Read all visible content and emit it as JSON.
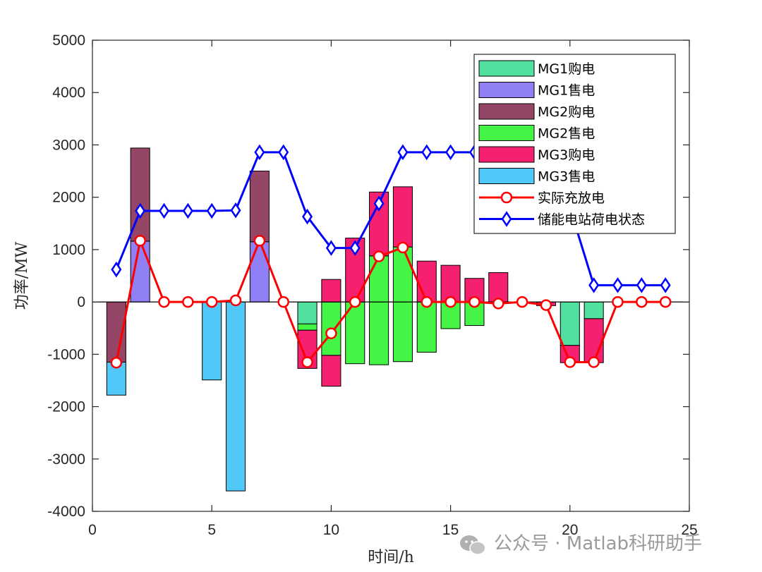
{
  "chart_data": {
    "type": "bar",
    "xlabel": "时间/h",
    "ylabel": "功率/MW",
    "xlim": [
      0,
      25
    ],
    "ylim": [
      -4000,
      5000
    ],
    "x_ticks": [
      0,
      5,
      10,
      15,
      20,
      25
    ],
    "y_ticks": [
      -4000,
      -3000,
      -2000,
      -1000,
      0,
      1000,
      2000,
      3000,
      4000,
      5000
    ],
    "grid": false,
    "legend_position": "top-right",
    "x": [
      1,
      2,
      3,
      4,
      5,
      6,
      7,
      8,
      9,
      10,
      11,
      12,
      13,
      14,
      15,
      16,
      17,
      18,
      19,
      20,
      21,
      22,
      23,
      24
    ],
    "bar_series": [
      {
        "name": "MG1购电",
        "color": "#52e0a0",
        "values": [
          0,
          0,
          0,
          0,
          0,
          0,
          0,
          0,
          0,
          0,
          0,
          0,
          0,
          0,
          0,
          0,
          0,
          0,
          0,
          0,
          0,
          0,
          0,
          0
        ],
        "neg_values": [
          0,
          0,
          0,
          0,
          0,
          0,
          0,
          0,
          -420,
          0,
          0,
          0,
          0,
          0,
          0,
          0,
          0,
          0,
          0,
          -830,
          -320,
          0,
          0,
          0
        ]
      },
      {
        "name": "MG1售电",
        "color": "#9080f5",
        "values": [
          0,
          1160,
          0,
          0,
          0,
          0,
          1150,
          0,
          0,
          0,
          0,
          0,
          0,
          0,
          0,
          0,
          0,
          0,
          0,
          0,
          0,
          0,
          0,
          0
        ],
        "neg_values": [
          0,
          0,
          0,
          0,
          0,
          0,
          0,
          0,
          0,
          0,
          0,
          0,
          0,
          0,
          0,
          0,
          0,
          0,
          0,
          0,
          0,
          0,
          0,
          0
        ]
      },
      {
        "name": "MG2购电",
        "color": "#954565",
        "values": [
          0,
          1780,
          0,
          0,
          0,
          0,
          1350,
          0,
          0,
          0,
          0,
          0,
          0,
          0,
          0,
          0,
          0,
          0,
          0,
          0,
          0,
          0,
          0,
          0
        ],
        "neg_values": [
          -1150,
          0,
          0,
          0,
          0,
          0,
          0,
          0,
          0,
          0,
          0,
          0,
          0,
          0,
          0,
          0,
          0,
          0,
          0,
          0,
          0,
          0,
          0,
          0
        ]
      },
      {
        "name": "MG2售电",
        "color": "#45f545",
        "values": [
          0,
          0,
          0,
          0,
          0,
          0,
          0,
          0,
          0,
          0,
          0,
          880,
          1050,
          0,
          0,
          0,
          0,
          0,
          0,
          0,
          0,
          0,
          0,
          0
        ],
        "neg_values": [
          0,
          0,
          0,
          0,
          0,
          0,
          0,
          0,
          -120,
          -1020,
          -1180,
          -1200,
          -1140,
          -960,
          -510,
          -450,
          0,
          0,
          0,
          0,
          0,
          0,
          0,
          0
        ]
      },
      {
        "name": "MG3购电",
        "color": "#f52070",
        "values": [
          0,
          0,
          0,
          0,
          0,
          0,
          0,
          0,
          0,
          430,
          1220,
          1220,
          1150,
          780,
          700,
          450,
          560,
          0,
          0,
          0,
          0,
          0,
          0,
          0
        ],
        "neg_values": [
          0,
          0,
          0,
          0,
          0,
          0,
          0,
          0,
          -730,
          -590,
          0,
          0,
          0,
          0,
          0,
          0,
          0,
          0,
          -70,
          -330,
          -840,
          0,
          0,
          0
        ]
      },
      {
        "name": "MG3售电",
        "color": "#50c8f8",
        "values": [
          0,
          0,
          0,
          0,
          0,
          0,
          0,
          0,
          0,
          0,
          0,
          0,
          0,
          0,
          0,
          0,
          0,
          0,
          0,
          0,
          0,
          0,
          0,
          0
        ],
        "neg_values": [
          -630,
          0,
          0,
          0,
          -1490,
          -3610,
          0,
          0,
          0,
          0,
          0,
          0,
          0,
          0,
          0,
          0,
          0,
          0,
          0,
          0,
          0,
          0,
          0,
          0
        ]
      }
    ],
    "line_series": [
      {
        "name": "实际充放电",
        "color": "#ff0000",
        "marker": "circle",
        "values": [
          -1160,
          1170,
          0,
          0,
          0,
          30,
          1170,
          0,
          -1150,
          -600,
          0,
          870,
          1040,
          0,
          0,
          0,
          -30,
          0,
          -60,
          -1150,
          -1150,
          0,
          0,
          0
        ]
      },
      {
        "name": "储能电站荷电状态",
        "color": "#0000ff",
        "marker": "diamond",
        "values": [
          620,
          1740,
          1740,
          1740,
          1740,
          1750,
          2860,
          2860,
          1630,
          1030,
          1030,
          1880,
          2860,
          2860,
          2860,
          2860,
          2860,
          2860,
          1800,
          1800,
          320,
          320,
          320,
          320
        ]
      }
    ]
  },
  "watermark": {
    "text": "公众号 · Matlab科研助手",
    "icon": "wechat-icon"
  }
}
